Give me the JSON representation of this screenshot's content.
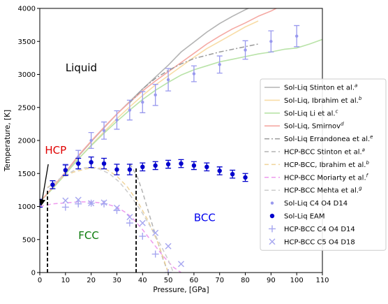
{
  "chart_data": {
    "type": "scatter",
    "xlabel": "Pressure, [GPa]",
    "ylabel": "Temperature, [K]",
    "xlim": [
      0,
      110
    ],
    "ylim": [
      0,
      4000
    ],
    "xticks": [
      0,
      10,
      20,
      30,
      40,
      50,
      60,
      70,
      80,
      90,
      100,
      110
    ],
    "yticks": [
      0,
      500,
      1000,
      1500,
      2000,
      2500,
      3000,
      3500,
      4000
    ],
    "grid": false,
    "legend_position": "right",
    "region_labels": [
      {
        "text": "Liquid",
        "x": 10,
        "y": 3050,
        "color": "#000000",
        "size": 15
      },
      {
        "text": "HCP",
        "x": 2,
        "y": 1800,
        "color": "#e00000",
        "size": 15
      },
      {
        "text": "FCC",
        "x": 15,
        "y": 510,
        "color": "#0a7a0a",
        "size": 15
      },
      {
        "text": "BCC",
        "x": 60,
        "y": 780,
        "color": "#0000ee",
        "size": 15
      }
    ],
    "arrow": {
      "from": [
        3.3,
        1640
      ],
      "to": [
        0.6,
        1020
      ],
      "color": "#000000"
    },
    "vlines": [
      {
        "x": 3,
        "y0": 0,
        "y1": 1270,
        "color": "#000000"
      },
      {
        "x": 37.5,
        "y0": 0,
        "y1": 1590,
        "color": "#000000"
      }
    ],
    "series": [
      {
        "name": "Sol-Liq Stinton et al.",
        "sup": "a",
        "kind": "line",
        "color": "#b3b3b3",
        "dash": "",
        "width": 1.6,
        "x": [
          0,
          5,
          10,
          15,
          20,
          25,
          30,
          35,
          40,
          45,
          50,
          55,
          60,
          65,
          70,
          75,
          80,
          85
        ],
        "y": [
          1070,
          1280,
          1510,
          1760,
          1980,
          2190,
          2400,
          2590,
          2780,
          2960,
          3140,
          3340,
          3490,
          3640,
          3770,
          3880,
          3980,
          4070
        ]
      },
      {
        "name": "Sol-Liq, Ibrahim et al.",
        "sup": "b",
        "kind": "line",
        "color": "#f8dca6",
        "dash": "",
        "width": 1.6,
        "x": [
          0,
          5,
          10,
          15,
          20,
          25,
          30,
          35,
          40,
          45,
          50,
          55,
          60,
          65,
          70,
          75,
          80,
          85
        ],
        "y": [
          1070,
          1270,
          1490,
          1720,
          1930,
          2130,
          2330,
          2510,
          2680,
          2840,
          2980,
          3120,
          3260,
          3390,
          3500,
          3610,
          3720,
          3810
        ]
      },
      {
        "name": "Sol-Liq Li et al.",
        "sup": "c",
        "kind": "line",
        "color": "#b9e3a8",
        "dash": "",
        "width": 1.6,
        "x": [
          0,
          5,
          10,
          15,
          20,
          25,
          30,
          35,
          40,
          45,
          50,
          55,
          60,
          65,
          70,
          75,
          80,
          85,
          90,
          95,
          100,
          105,
          110
        ],
        "y": [
          1070,
          1270,
          1490,
          1720,
          1920,
          2110,
          2290,
          2460,
          2620,
          2760,
          2880,
          2990,
          3070,
          3130,
          3190,
          3230,
          3270,
          3310,
          3340,
          3380,
          3400,
          3460,
          3530
        ]
      },
      {
        "name": "Sol-Liq, Smirnov",
        "sup": "d",
        "kind": "line",
        "color": "#f5a9a3",
        "dash": "",
        "width": 1.6,
        "x": [
          0,
          5,
          10,
          15,
          20,
          25,
          30,
          35,
          40,
          45,
          50,
          55,
          60,
          65,
          70,
          75,
          80,
          85,
          90,
          95
        ],
        "y": [
          1070,
          1290,
          1520,
          1770,
          1990,
          2200,
          2400,
          2580,
          2750,
          2900,
          3040,
          3180,
          3320,
          3460,
          3580,
          3690,
          3780,
          3880,
          3960,
          4060
        ]
      },
      {
        "name": "Sol-Liq Errandonea et al.",
        "sup": "e",
        "kind": "line",
        "color": "#9a9a9a",
        "dash": "7,3,2,3",
        "width": 1.5,
        "x": [
          35,
          40,
          45,
          50,
          55,
          60,
          65,
          70,
          75,
          80,
          85
        ],
        "y": [
          2570,
          2780,
          2940,
          3060,
          3160,
          3240,
          3290,
          3340,
          3380,
          3420,
          3460
        ]
      },
      {
        "name": "HCP-BCC Stinton et al.",
        "sup": "a",
        "kind": "line",
        "color": "#b3b3b3",
        "dash": "6,4",
        "width": 1.5,
        "x": [
          35,
          38,
          40,
          42,
          44,
          46,
          48,
          50
        ],
        "y": [
          1650,
          1450,
          1220,
          960,
          700,
          450,
          200,
          0
        ]
      },
      {
        "name": "HCP-BCC, Ibrahim et al.",
        "sup": "b",
        "kind": "line",
        "color": "#f0d49a",
        "dash": "6,4",
        "width": 1.5,
        "x": [
          3,
          8,
          13,
          18,
          22,
          26,
          30,
          34,
          38,
          42,
          46,
          48,
          50
        ],
        "y": [
          1290,
          1420,
          1520,
          1570,
          1590,
          1560,
          1460,
          1300,
          1080,
          800,
          450,
          230,
          0
        ]
      },
      {
        "name": "HCP-BCC Moriarty et al.",
        "sup": "f",
        "kind": "line",
        "color": "#ee99ee",
        "dash": "6,4",
        "width": 1.5,
        "x": [
          0,
          5,
          10,
          15,
          20,
          25,
          30,
          33,
          36,
          40,
          44,
          48,
          52,
          55
        ],
        "y": [
          1000,
          1040,
          1055,
          1070,
          1070,
          1050,
          990,
          920,
          830,
          650,
          450,
          250,
          80,
          0
        ]
      },
      {
        "name": "HCP-BCC Mehta et al.",
        "sup": "g",
        "kind": "line",
        "color": "#cccccc",
        "dash": "6,4",
        "width": 1.5,
        "x": [
          3,
          8,
          13,
          18,
          23,
          27,
          31,
          35,
          39,
          43,
          47,
          50,
          52
        ],
        "y": [
          1280,
          1430,
          1540,
          1590,
          1570,
          1500,
          1370,
          1180,
          960,
          700,
          420,
          190,
          0
        ]
      },
      {
        "name": "Sol-Liq C4 O4 D14",
        "sup": "",
        "kind": "errpoints",
        "color": "#9999ee",
        "marker": "circle",
        "r": 2.2,
        "x": [
          10,
          15,
          20,
          25,
          30,
          35,
          40,
          45,
          50,
          60,
          70,
          80,
          90,
          100
        ],
        "y": [
          1560,
          1750,
          2000,
          2150,
          2310,
          2460,
          2580,
          2690,
          2920,
          3010,
          3150,
          3370,
          3500,
          3580
        ],
        "err": [
          80,
          100,
          120,
          130,
          140,
          150,
          160,
          160,
          170,
          120,
          130,
          140,
          160,
          160
        ]
      },
      {
        "name": "Sol-Liq EAM",
        "sup": "",
        "kind": "errpoints",
        "color": "#0000cc",
        "marker": "circle",
        "r": 3.2,
        "x": [
          0,
          5,
          10,
          15,
          20,
          25,
          30,
          35,
          40,
          45,
          50,
          55,
          60,
          65,
          70,
          75,
          80
        ],
        "y": [
          1050,
          1330,
          1550,
          1650,
          1670,
          1650,
          1560,
          1560,
          1600,
          1620,
          1640,
          1650,
          1620,
          1600,
          1540,
          1490,
          1440
        ],
        "err": [
          60,
          60,
          80,
          80,
          80,
          80,
          80,
          80,
          60,
          60,
          60,
          60,
          60,
          60,
          60,
          60,
          60
        ]
      },
      {
        "name": "HCP-BCC C4 O4 D14",
        "sup": "",
        "kind": "points",
        "color": "#a6a6f0",
        "marker": "plus",
        "x": [
          10,
          15,
          20,
          25,
          30,
          35,
          40,
          45,
          50
        ],
        "y": [
          990,
          1040,
          1050,
          1040,
          940,
          750,
          550,
          280,
          0
        ]
      },
      {
        "name": "HCP-BCC C5 O4 D18",
        "sup": "",
        "kind": "points",
        "color": "#a6a6f0",
        "marker": "x",
        "x": [
          10,
          15,
          20,
          25,
          30,
          35,
          40,
          45,
          50,
          55
        ],
        "y": [
          1090,
          1100,
          1050,
          1060,
          980,
          840,
          750,
          600,
          400,
          130
        ]
      }
    ]
  }
}
